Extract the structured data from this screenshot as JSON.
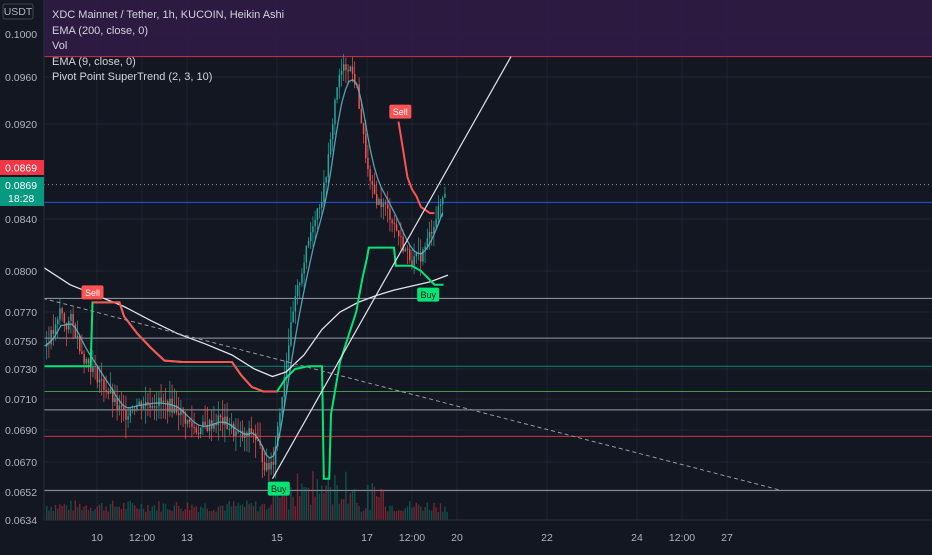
{
  "chart_data": {
    "type": "candlestick",
    "title": "XDC Mainnet / Tether, 1h, KUCOIN, Heikin Ashi",
    "currency_label": "USDT",
    "indicators": [
      "EMA (200, close, 0)",
      "Vol",
      "EMA (9, close, 0)",
      "Pivot Point SuperTrend (2, 3, 10)"
    ],
    "y_ticks": [
      {
        "value": 0.1,
        "label": "0.1000"
      },
      {
        "value": 0.096,
        "label": "0.0960"
      },
      {
        "value": 0.092,
        "label": "0.0920"
      },
      {
        "value": 0.084,
        "label": "0.0840"
      },
      {
        "value": 0.08,
        "label": "0.0800"
      },
      {
        "value": 0.077,
        "label": "0.0770"
      },
      {
        "value": 0.075,
        "label": "0.0750"
      },
      {
        "value": 0.073,
        "label": "0.0730"
      },
      {
        "value": 0.071,
        "label": "0.0710"
      },
      {
        "value": 0.069,
        "label": "0.0690"
      },
      {
        "value": 0.067,
        "label": "0.0670"
      },
      {
        "value": 0.0652,
        "label": "0.0652"
      },
      {
        "value": 0.0634,
        "label": "0.0634"
      }
    ],
    "x_ticks": [
      {
        "t": 0.0,
        "label": "10"
      },
      {
        "t": 0.5,
        "label": "12:00"
      },
      {
        "t": 1.0,
        "label": "13"
      },
      {
        "t": 2.0,
        "label": "15"
      },
      {
        "t": 3.0,
        "label": "17"
      },
      {
        "t": 3.5,
        "label": "12:00"
      },
      {
        "t": 4.0,
        "label": "20"
      },
      {
        "t": 5.0,
        "label": "22"
      },
      {
        "t": 6.0,
        "label": "24"
      },
      {
        "t": 6.5,
        "label": "12:00"
      },
      {
        "t": 7.0,
        "label": "27"
      }
    ],
    "price_tags": [
      {
        "value": 0.0869,
        "label": "0.0869",
        "color": "#f23645"
      },
      {
        "value": 0.0869,
        "label": "0.0869",
        "sublabel": "18:28",
        "color": "#089981"
      }
    ],
    "zones": [
      {
        "from": 0.0854,
        "to": 0.0979,
        "color": "#f23645",
        "opacity": 0.22
      },
      {
        "from": 0.078,
        "to": 0.0854,
        "color": "#2962ff",
        "opacity": 0.3
      },
      {
        "from": 0.0752,
        "to": 0.078,
        "color": "#787b86",
        "opacity": 0.22
      },
      {
        "from": 0.0732,
        "to": 0.0752,
        "color": "#5b9cf6",
        "opacity": 0.18
      },
      {
        "from": 0.0715,
        "to": 0.0732,
        "color": "#089981",
        "opacity": 0.28
      },
      {
        "from": 0.0703,
        "to": 0.0715,
        "color": "#089981",
        "opacity": 0.18
      },
      {
        "from": 0.0686,
        "to": 0.0703,
        "color": "#4caf50",
        "opacity": 0.12
      },
      {
        "from": 0.0653,
        "to": 0.0686,
        "color": "#f23645",
        "opacity": 0.22
      }
    ],
    "zone_lines": [
      {
        "value": 0.0979,
        "color": "#f23645"
      },
      {
        "value": 0.0854,
        "color": "#2962ff"
      },
      {
        "value": 0.078,
        "color": "#b2b5be"
      },
      {
        "value": 0.0752,
        "color": "#b2b5be"
      },
      {
        "value": 0.0732,
        "color": "#089981"
      },
      {
        "value": 0.0715,
        "color": "#4caf50"
      },
      {
        "value": 0.0703,
        "color": "#b2b5be"
      },
      {
        "value": 0.0686,
        "color": "#f23645"
      },
      {
        "value": 0.0653,
        "color": "#b2b5be"
      }
    ],
    "price_path": [
      [
        -0.6,
        0.0746
      ],
      [
        -0.45,
        0.076
      ],
      [
        -0.42,
        0.0772
      ],
      [
        -0.35,
        0.076
      ],
      [
        -0.3,
        0.0765
      ],
      [
        -0.25,
        0.0756
      ],
      [
        -0.15,
        0.0738
      ],
      [
        -0.05,
        0.073
      ],
      [
        0.05,
        0.072
      ],
      [
        0.15,
        0.0712
      ],
      [
        0.2,
        0.0705
      ],
      [
        0.3,
        0.07
      ],
      [
        0.4,
        0.0706
      ],
      [
        0.5,
        0.0707
      ],
      [
        0.65,
        0.0708
      ],
      [
        0.8,
        0.0706
      ],
      [
        0.9,
        0.0703
      ],
      [
        1.0,
        0.0695
      ],
      [
        1.1,
        0.069
      ],
      [
        1.2,
        0.0692
      ],
      [
        1.35,
        0.0697
      ],
      [
        1.45,
        0.0693
      ],
      [
        1.55,
        0.0687
      ],
      [
        1.65,
        0.0685
      ],
      [
        1.72,
        0.069
      ],
      [
        1.8,
        0.0678
      ],
      [
        1.88,
        0.0665
      ],
      [
        1.95,
        0.0672
      ],
      [
        2.02,
        0.07
      ],
      [
        2.1,
        0.074
      ],
      [
        2.2,
        0.078
      ],
      [
        2.3,
        0.081
      ],
      [
        2.4,
        0.084
      ],
      [
        2.5,
        0.086
      ],
      [
        2.58,
        0.09
      ],
      [
        2.65,
        0.095
      ],
      [
        2.72,
        0.0968
      ],
      [
        2.8,
        0.097
      ],
      [
        2.88,
        0.095
      ],
      [
        2.95,
        0.091
      ],
      [
        3.02,
        0.087
      ],
      [
        3.1,
        0.0856
      ],
      [
        3.2,
        0.085
      ],
      [
        3.3,
        0.0835
      ],
      [
        3.4,
        0.0818
      ],
      [
        3.5,
        0.0808
      ],
      [
        3.6,
        0.0812
      ],
      [
        3.7,
        0.083
      ],
      [
        3.8,
        0.085
      ],
      [
        3.88,
        0.0869
      ]
    ],
    "ema200": [
      [
        -0.6,
        0.0803
      ],
      [
        -0.3,
        0.079
      ],
      [
        0.0,
        0.0782
      ],
      [
        0.3,
        0.0774
      ],
      [
        0.6,
        0.0764
      ],
      [
        0.9,
        0.0755
      ],
      [
        1.2,
        0.0748
      ],
      [
        1.5,
        0.074
      ],
      [
        1.75,
        0.073
      ],
      [
        1.95,
        0.0725
      ],
      [
        2.1,
        0.0728
      ],
      [
        2.3,
        0.074
      ],
      [
        2.5,
        0.0758
      ],
      [
        2.7,
        0.077
      ],
      [
        2.9,
        0.0777
      ],
      [
        3.1,
        0.0782
      ],
      [
        3.3,
        0.0786
      ],
      [
        3.5,
        0.0789
      ],
      [
        3.7,
        0.0792
      ],
      [
        3.9,
        0.0797
      ]
    ],
    "supertrend": [
      [
        -0.6,
        0.0732
      ],
      [
        -0.07,
        0.0732
      ],
      [
        -0.05,
        0.0777
      ],
      [
        0.25,
        0.0777
      ],
      [
        0.3,
        0.0767
      ],
      [
        0.45,
        0.0755
      ],
      [
        0.6,
        0.0745
      ],
      [
        0.75,
        0.0736
      ],
      [
        0.95,
        0.0735
      ],
      [
        1.5,
        0.0735
      ],
      [
        1.6,
        0.0726
      ],
      [
        1.72,
        0.0718
      ],
      [
        1.85,
        0.0715
      ],
      [
        2.0,
        0.0715
      ],
      [
        2.1,
        0.0724
      ],
      [
        2.2,
        0.073
      ],
      [
        2.35,
        0.0732
      ],
      [
        2.5,
        0.0732
      ],
      [
        2.52,
        0.066
      ],
      [
        2.58,
        0.066
      ],
      [
        2.6,
        0.07
      ],
      [
        2.7,
        0.0735
      ],
      [
        2.88,
        0.077
      ],
      [
        2.95,
        0.0795
      ],
      [
        3.0,
        0.081
      ],
      [
        3.02,
        0.0818
      ],
      [
        3.3,
        0.0818
      ],
      [
        3.32,
        0.0804
      ],
      [
        3.5,
        0.0804
      ],
      [
        3.6,
        0.08
      ],
      [
        3.75,
        0.079
      ],
      [
        3.85,
        0.079
      ]
    ],
    "supertrend_red": [
      [
        3.35,
        0.0922
      ],
      [
        3.38,
        0.0908
      ],
      [
        3.45,
        0.0875
      ],
      [
        3.5,
        0.0865
      ],
      [
        3.55,
        0.0859
      ],
      [
        3.6,
        0.085
      ],
      [
        3.7,
        0.0845
      ],
      [
        3.75,
        0.0845
      ]
    ],
    "signals": [
      {
        "type": "Sell",
        "t": -0.05,
        "value": 0.0777
      },
      {
        "type": "Buy",
        "t": 2.02,
        "value": 0.066
      },
      {
        "type": "Sell",
        "t": 3.37,
        "value": 0.0922
      },
      {
        "type": "Buy",
        "t": 3.68,
        "value": 0.079
      }
    ],
    "trendline": {
      "from": [
        1.95,
        0.066
      ],
      "to": [
        4.6,
        0.0979
      ]
    },
    "dashed_trendline": {
      "from": [
        -0.6,
        0.078
      ],
      "to": [
        7.6,
        0.0653
      ]
    },
    "dotted_price_line": 0.0869
  }
}
